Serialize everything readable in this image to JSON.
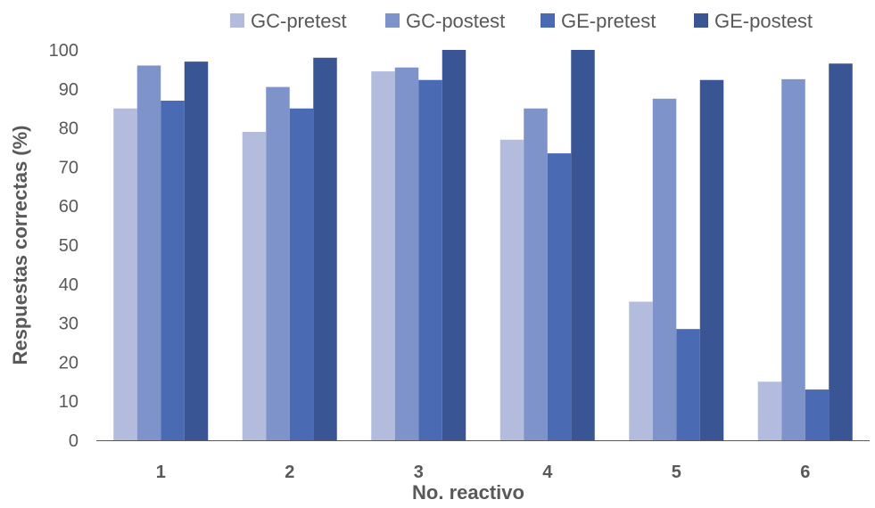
{
  "chart_data": {
    "type": "bar",
    "title": "",
    "xlabel": "No. reactivo",
    "ylabel": "Respuestas correctas (%)",
    "ylim": [
      0,
      100
    ],
    "yticks": [
      0,
      10,
      20,
      30,
      40,
      50,
      60,
      70,
      80,
      90,
      100
    ],
    "grid": false,
    "legend_position": "top",
    "categories": [
      "1",
      "2",
      "3",
      "4",
      "5",
      "6"
    ],
    "series": [
      {
        "name": "GC-pretest",
        "color": "#b4bcdd",
        "values": [
          85,
          79,
          94.5,
          77,
          35.5,
          15
        ]
      },
      {
        "name": "GC-postest",
        "color": "#7f93cb",
        "values": [
          96,
          90.5,
          95.5,
          85,
          87.5,
          92.5
        ]
      },
      {
        "name": "GE-pretest",
        "color": "#4a6ab4",
        "values": [
          87,
          85,
          92.3,
          73.5,
          28.5,
          13
        ]
      },
      {
        "name": "GE-postest",
        "color": "#3a5594",
        "values": [
          97,
          98,
          100,
          100,
          92.3,
          96.5
        ]
      }
    ]
  }
}
